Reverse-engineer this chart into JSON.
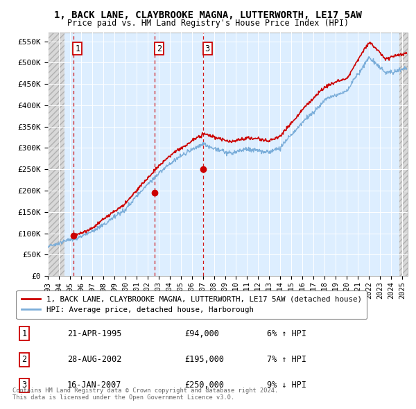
{
  "title": "1, BACK LANE, CLAYBROOKE MAGNA, LUTTERWORTH, LE17 5AW",
  "subtitle": "Price paid vs. HM Land Registry's House Price Index (HPI)",
  "ylim": [
    0,
    570000
  ],
  "xlim_start": 1993.0,
  "xlim_end": 2025.5,
  "yticks": [
    0,
    50000,
    100000,
    150000,
    200000,
    250000,
    300000,
    350000,
    400000,
    450000,
    500000,
    550000
  ],
  "ytick_labels": [
    "£0",
    "£50K",
    "£100K",
    "£150K",
    "£200K",
    "£250K",
    "£300K",
    "£350K",
    "£400K",
    "£450K",
    "£500K",
    "£550K"
  ],
  "sale_dates": [
    1995.31,
    2002.66,
    2007.04
  ],
  "sale_prices": [
    94000,
    195000,
    250000
  ],
  "sale_labels": [
    "1",
    "2",
    "3"
  ],
  "sale_info": [
    {
      "num": "1",
      "date": "21-APR-1995",
      "price": "£94,000",
      "hpi": "6% ↑ HPI"
    },
    {
      "num": "2",
      "date": "28-AUG-2002",
      "price": "£195,000",
      "hpi": "7% ↑ HPI"
    },
    {
      "num": "3",
      "date": "16-JAN-2007",
      "price": "£250,000",
      "hpi": "9% ↓ HPI"
    }
  ],
  "legend_line1": "1, BACK LANE, CLAYBROOKE MAGNA, LUTTERWORTH, LE17 5AW (detached house)",
  "legend_line2": "HPI: Average price, detached house, Harborough",
  "footer1": "Contains HM Land Registry data © Crown copyright and database right 2024.",
  "footer2": "This data is licensed under the Open Government Licence v3.0.",
  "red_color": "#cc0000",
  "blue_color": "#7aadd9",
  "bg_color": "#ffffff",
  "plot_bg": "#ddeeff",
  "grid_color": "#ffffff",
  "hatch_left_end": 1994.5,
  "hatch_right_start": 2024.75
}
